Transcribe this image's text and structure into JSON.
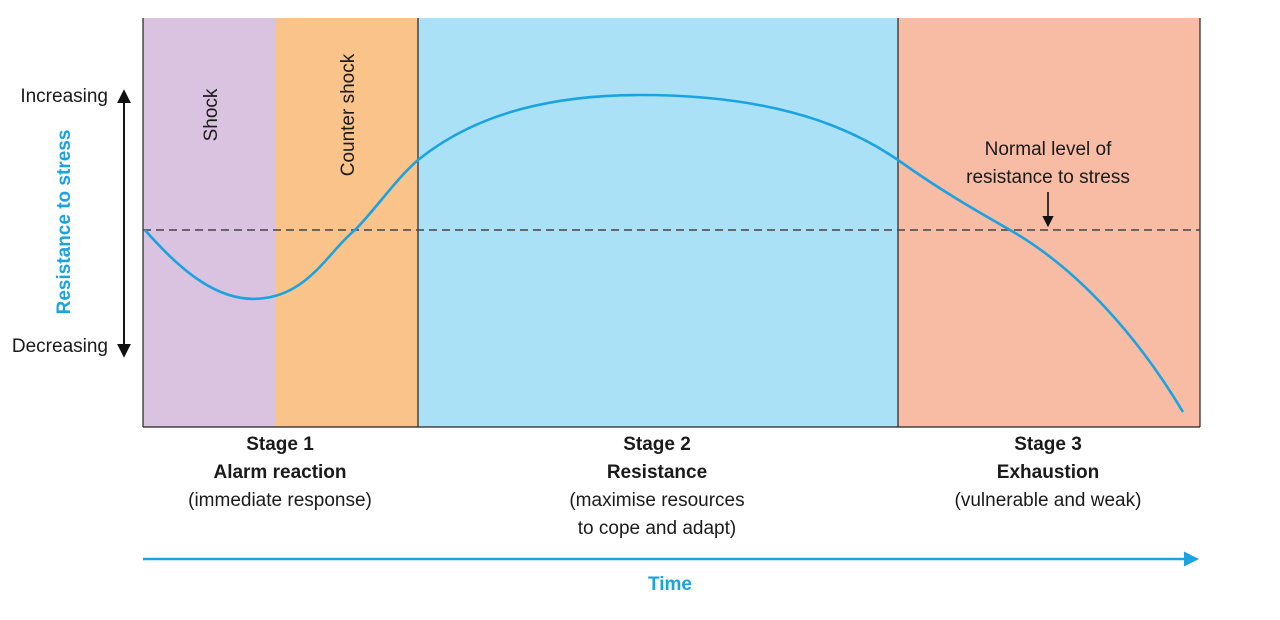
{
  "axis": {
    "increasing": "Increasing",
    "decreasing": "Decreasing",
    "label": "Resistance to stress"
  },
  "phases": [
    "Shock",
    "Counter shock"
  ],
  "normal_level": {
    "lines": [
      "Normal level of",
      "resistance to stress"
    ]
  },
  "stages": [
    {
      "number": "Stage 1",
      "name": "Alarm reaction",
      "description": [
        "(immediate response)"
      ]
    },
    {
      "number": "Stage 2",
      "name": "Resistance",
      "description": [
        "(maximise resources",
        "to cope and adapt)"
      ]
    },
    {
      "number": "Stage 3",
      "name": "Exhaustion",
      "description": [
        "(vulnerable and weak)"
      ]
    }
  ],
  "time": "Time"
}
